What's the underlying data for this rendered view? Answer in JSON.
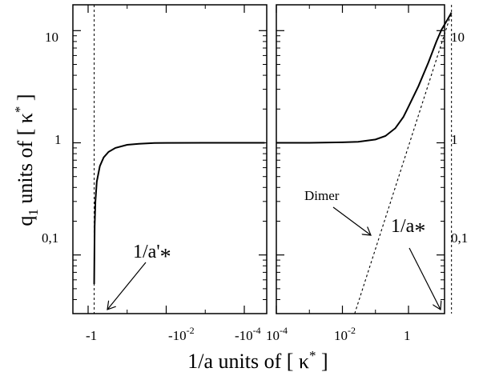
{
  "chart_data": {
    "type": "line",
    "ylabel_main": "q",
    "ylabel_sub": "1",
    "ylabel_rest": "  units of [ κ",
    "ylabel_sup": "*",
    "ylabel_end": " ]",
    "xlabel_main": "1/a  units of [ κ",
    "xlabel_sup": "*",
    "xlabel_end": " ]",
    "yscale": "log",
    "ylim": [
      0.03,
      17
    ],
    "yticks": [
      {
        "value": 0.1,
        "label": "0,1"
      },
      {
        "value": 1,
        "label": "1"
      },
      {
        "value": 10,
        "label": "10"
      }
    ],
    "panels": [
      {
        "id": "left",
        "xscale": "symlog-negative",
        "xlim": [
          -3,
          -3e-05
        ],
        "xticks": [
          {
            "value": -1,
            "label": "-1"
          },
          {
            "value": -0.01,
            "label": "-10",
            "sup": "-2"
          },
          {
            "value": -0.0001,
            "label": "-10",
            "sup": "-4"
          }
        ],
        "asymptote_x": -0.7,
        "series": [
          {
            "x": [
              -0.7,
              -0.68,
              -0.65,
              -0.6,
              -0.5,
              -0.4,
              -0.3,
              -0.2,
              -0.1,
              -0.05,
              -0.02,
              -0.01,
              -0.001,
              -0.0001,
              -3e-05
            ],
            "y": [
              0.055,
              0.18,
              0.3,
              0.45,
              0.62,
              0.74,
              0.83,
              0.9,
              0.96,
              0.98,
              0.995,
              0.998,
              1.0,
              1.0,
              1.0
            ]
          }
        ],
        "annotation": {
          "text": "1/a'",
          "sub": "*"
        }
      },
      {
        "id": "right",
        "xscale": "log",
        "xlim": [
          0.0001,
          30
        ],
        "xticks": [
          {
            "value": 0.0001,
            "label": "10",
            "sup": "-4"
          },
          {
            "value": 0.01,
            "label": "10",
            "sup": "-2"
          },
          {
            "value": 1,
            "label": "1"
          }
        ],
        "asymptote_x": 20,
        "series": [
          {
            "name": "",
            "style": "solid",
            "x": [
              0.0001,
              0.001,
              0.01,
              0.03,
              0.1,
              0.2,
              0.4,
              0.7,
              1,
              2,
              4,
              7,
              10,
              15,
              20
            ],
            "y": [
              1.0,
              1.0,
              1.01,
              1.02,
              1.07,
              1.15,
              1.35,
              1.7,
              2.1,
              3.2,
              5.2,
              8.0,
              10.2,
              12.5,
              14.5
            ]
          },
          {
            "name": "Dimer",
            "style": "dashed",
            "x": [
              0.0235,
              20
            ],
            "y": [
              0.03,
              14.5
            ]
          }
        ],
        "annotation": {
          "text": "1/a",
          "sub": "*"
        },
        "dimer_label": "Dimer"
      }
    ]
  }
}
